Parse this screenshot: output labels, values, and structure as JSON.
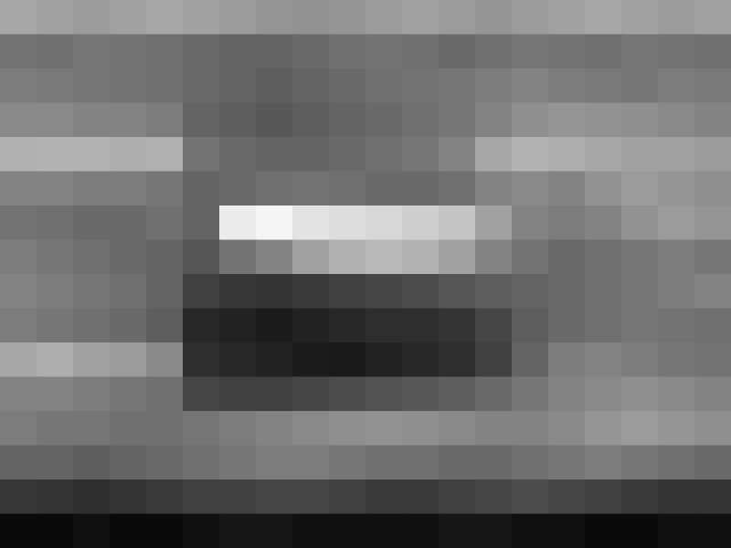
{
  "chart_data": {
    "type": "heatmap",
    "tick_labels": false,
    "cells": [
      [
        62,
        60,
        58,
        60,
        62,
        60,
        58,
        56,
        55,
        56,
        58,
        60,
        58,
        56,
        58,
        60,
        62,
        60,
        58,
        60
      ],
      [
        45,
        44,
        46,
        45,
        44,
        42,
        40,
        40,
        42,
        44,
        45,
        44,
        42,
        44,
        46,
        45,
        44,
        46,
        45,
        44
      ],
      [
        48,
        47,
        46,
        45,
        44,
        42,
        40,
        38,
        40,
        42,
        44,
        45,
        46,
        48,
        50,
        48,
        47,
        46,
        48,
        47
      ],
      [
        52,
        52,
        50,
        50,
        48,
        40,
        38,
        36,
        38,
        40,
        42,
        44,
        46,
        50,
        54,
        56,
        55,
        54,
        52,
        50
      ],
      [
        65,
        66,
        66,
        64,
        65,
        45,
        42,
        40,
        40,
        42,
        44,
        46,
        50,
        62,
        66,
        64,
        62,
        60,
        60,
        58
      ],
      [
        50,
        50,
        48,
        48,
        46,
        40,
        42,
        44,
        45,
        44,
        42,
        42,
        44,
        50,
        52,
        50,
        55,
        58,
        56,
        54
      ],
      [
        45,
        44,
        42,
        42,
        44,
        40,
        85,
        88,
        82,
        80,
        78,
        75,
        72,
        60,
        50,
        48,
        50,
        55,
        58,
        56
      ],
      [
        48,
        46,
        44,
        42,
        40,
        35,
        45,
        50,
        60,
        65,
        68,
        66,
        60,
        50,
        45,
        42,
        44,
        46,
        48,
        46
      ],
      [
        50,
        48,
        46,
        44,
        40,
        28,
        25,
        24,
        26,
        28,
        30,
        32,
        35,
        38,
        40,
        42,
        44,
        46,
        48,
        50
      ],
      [
        48,
        46,
        44,
        42,
        38,
        20,
        18,
        16,
        18,
        20,
        22,
        22,
        24,
        30,
        38,
        42,
        44,
        46,
        45,
        44
      ],
      [
        62,
        64,
        60,
        58,
        52,
        22,
        20,
        18,
        16,
        15,
        18,
        20,
        22,
        28,
        40,
        48,
        50,
        48,
        46,
        45
      ],
      [
        50,
        50,
        48,
        46,
        44,
        30,
        28,
        28,
        30,
        32,
        34,
        36,
        38,
        42,
        46,
        50,
        52,
        54,
        52,
        50
      ],
      [
        48,
        46,
        46,
        44,
        44,
        46,
        48,
        50,
        52,
        54,
        55,
        54,
        52,
        50,
        50,
        52,
        56,
        58,
        56,
        54
      ],
      [
        40,
        40,
        38,
        40,
        42,
        44,
        46,
        48,
        48,
        46,
        44,
        44,
        42,
        42,
        44,
        46,
        48,
        46,
        44,
        42
      ],
      [
        25,
        24,
        22,
        24,
        26,
        28,
        28,
        30,
        30,
        28,
        26,
        26,
        28,
        30,
        32,
        30,
        28,
        26,
        24,
        24
      ],
      [
        10,
        10,
        12,
        10,
        10,
        12,
        14,
        14,
        12,
        12,
        12,
        12,
        14,
        14,
        12,
        12,
        10,
        10,
        12,
        12
      ]
    ]
  }
}
